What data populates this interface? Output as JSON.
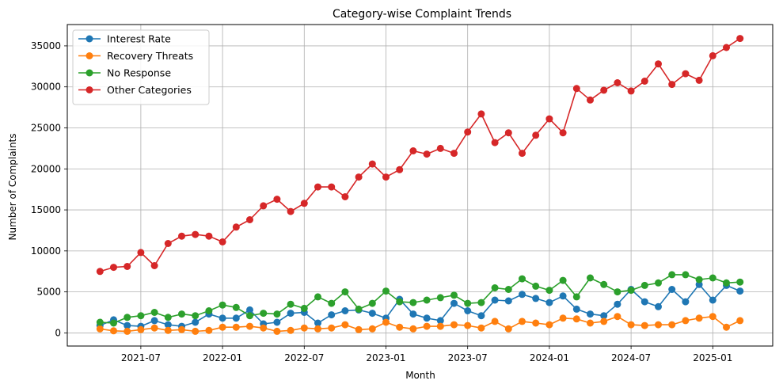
{
  "chart_data": {
    "type": "line",
    "title": "Category-wise Complaint Trends",
    "xlabel": "Month",
    "ylabel": "Number of Complaints",
    "x_start": "2021-04",
    "x_ticks": [
      "2021-07",
      "2022-01",
      "2022-07",
      "2023-01",
      "2023-07",
      "2024-01",
      "2024-07",
      "2025-01"
    ],
    "y_ticks": [
      0,
      5000,
      10000,
      15000,
      20000,
      25000,
      30000,
      35000
    ],
    "ylim": [
      -1600,
      37600
    ],
    "grid": true,
    "legend_position": "top-left",
    "series": [
      {
        "name": "Interest Rate",
        "color": "#1f77b4",
        "values": [
          900,
          1600,
          900,
          800,
          1500,
          1000,
          800,
          1300,
          2300,
          1800,
          1800,
          2800,
          1100,
          1300,
          2400,
          2500,
          1200,
          2200,
          2700,
          2800,
          2400,
          1800,
          4100,
          2300,
          1800,
          1500,
          3600,
          2700,
          2100,
          4000,
          3900,
          4700,
          4200,
          3700,
          4500,
          2900,
          2300,
          2100,
          3500,
          5300,
          3800,
          3200,
          5300,
          3800,
          5900,
          4000,
          5800,
          5100
        ]
      },
      {
        "name": "Recovery Threats",
        "color": "#ff7f0e",
        "values": [
          500,
          250,
          200,
          400,
          600,
          300,
          400,
          200,
          300,
          700,
          700,
          800,
          600,
          200,
          300,
          600,
          500,
          600,
          1000,
          400,
          500,
          1300,
          700,
          500,
          800,
          800,
          1000,
          900,
          600,
          1400,
          500,
          1400,
          1200,
          1000,
          1800,
          1700,
          1200,
          1400,
          2000,
          1000,
          900,
          1000,
          1000,
          1500,
          1800,
          2000,
          700,
          1500
        ]
      },
      {
        "name": "No Response",
        "color": "#2ca02c",
        "values": [
          1300,
          1200,
          1900,
          2100,
          2500,
          1900,
          2300,
          2100,
          2700,
          3400,
          3100,
          2100,
          2400,
          2300,
          3500,
          3000,
          4400,
          3600,
          5000,
          2900,
          3600,
          5100,
          3800,
          3700,
          4000,
          4300,
          4600,
          3600,
          3700,
          5500,
          5300,
          6600,
          5700,
          5200,
          6400,
          4400,
          6700,
          5900,
          5000,
          5200,
          5800,
          6100,
          7100,
          7100,
          6500,
          6700,
          6100,
          6200
        ]
      },
      {
        "name": "Other Categories",
        "color": "#d62728",
        "values": [
          7500,
          8000,
          8100,
          9800,
          8200,
          10900,
          11800,
          12000,
          11800,
          11100,
          12900,
          13800,
          15500,
          16300,
          14800,
          15800,
          17800,
          17800,
          16600,
          19000,
          20600,
          19000,
          19900,
          22200,
          21800,
          22500,
          21900,
          24500,
          26700,
          23200,
          24400,
          21900,
          24100,
          26100,
          24400,
          29800,
          28400,
          29600,
          30500,
          29500,
          30700,
          32800,
          30300,
          31600,
          30800,
          33800,
          34800,
          35900
        ]
      }
    ]
  }
}
